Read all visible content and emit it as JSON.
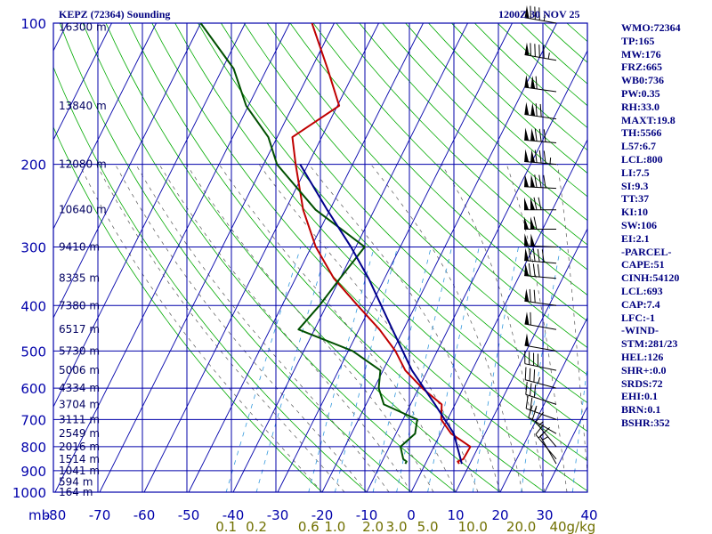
{
  "header": {
    "station": "KEPZ (72364) Sounding",
    "time": "1200Z 30 NOV 25"
  },
  "chart_data": {
    "type": "line",
    "title": "KEPZ (72364) Sounding",
    "y_axis": {
      "scale": "log",
      "pressure_ticks": [
        100,
        200,
        300,
        400,
        500,
        600,
        700,
        800,
        900,
        1000
      ],
      "pressure_unit_label": "mb",
      "pressure_range": [
        100,
        1000
      ]
    },
    "x_axis": {
      "temperature_ticks": [
        -80,
        -70,
        -60,
        -50,
        -40,
        -30,
        -20,
        -10,
        0,
        10,
        20,
        30,
        40
      ],
      "temperature_range": [
        -80,
        40
      ],
      "skew": "skew-T"
    },
    "mixing_ratio_labels": [
      "0.1",
      "0.2",
      "0.6",
      "1.0",
      "2.0",
      "3.0",
      "5.0",
      "10.0",
      "20.0",
      "40g/kg"
    ],
    "mixing_ratio_values": [
      0.1,
      0.2,
      0.6,
      1.0,
      2.0,
      3.0,
      5.0,
      10.0,
      20.0,
      40.0
    ],
    "height_labels": [
      {
        "p": 102,
        "label": "16300 m"
      },
      {
        "p": 150,
        "label": "13840 m"
      },
      {
        "p": 200,
        "label": "12080 m"
      },
      {
        "p": 250,
        "label": "10640 m"
      },
      {
        "p": 300,
        "label": "9410 m"
      },
      {
        "p": 350,
        "label": "8335 m"
      },
      {
        "p": 400,
        "label": "7380 m"
      },
      {
        "p": 450,
        "label": "6517 m"
      },
      {
        "p": 500,
        "label": "5730 m"
      },
      {
        "p": 550,
        "label": "5006 m"
      },
      {
        "p": 600,
        "label": "4334 m"
      },
      {
        "p": 650,
        "label": "3704 m"
      },
      {
        "p": 700,
        "label": "3111 m"
      },
      {
        "p": 750,
        "label": "2549 m"
      },
      {
        "p": 800,
        "label": "2016 m"
      },
      {
        "p": 850,
        "label": "1514 m"
      },
      {
        "p": 900,
        "label": "1041 m"
      },
      {
        "p": 950,
        "label": "594 m"
      },
      {
        "p": 1000,
        "label": "164 m"
      }
    ],
    "series": [
      {
        "key": "temperature",
        "color": "#c00000",
        "points": [
          [
            870,
            7.6
          ],
          [
            860,
            7.0
          ],
          [
            850,
            8.0
          ],
          [
            800,
            8.2
          ],
          [
            750,
            2.4
          ],
          [
            700,
            -1.4
          ],
          [
            650,
            -3.0
          ],
          [
            600,
            -9.2
          ],
          [
            550,
            -15.0
          ],
          [
            500,
            -19.4
          ],
          [
            450,
            -25.4
          ],
          [
            400,
            -33.0
          ],
          [
            350,
            -41.4
          ],
          [
            300,
            -49.0
          ],
          [
            250,
            -56.0
          ],
          [
            200,
            -62.8
          ],
          [
            175,
            -66.6
          ],
          [
            150,
            -59.6
          ],
          [
            125,
            -66.4
          ],
          [
            100,
            -75.0
          ]
        ]
      },
      {
        "key": "dewpoint",
        "color": "#005000",
        "points": [
          [
            870,
            -4.5
          ],
          [
            860,
            -4.5
          ],
          [
            850,
            -5.5
          ],
          [
            800,
            -7.5
          ],
          [
            750,
            -5.7
          ],
          [
            700,
            -6.8
          ],
          [
            650,
            -16.0
          ],
          [
            600,
            -19.0
          ],
          [
            550,
            -20.6
          ],
          [
            500,
            -29.0
          ],
          [
            450,
            -43.6
          ],
          [
            400,
            -41.6
          ],
          [
            350,
            -40.0
          ],
          [
            300,
            -38.0
          ],
          [
            250,
            -53.2
          ],
          [
            200,
            -67.0
          ],
          [
            175,
            -72.0
          ],
          [
            150,
            -80.5
          ],
          [
            125,
            -87.5
          ],
          [
            100,
            -100
          ]
        ]
      },
      {
        "key": "parcel",
        "color": "#00008b",
        "points": [
          [
            870,
            8.2
          ],
          [
            750,
            3.0
          ],
          [
            650,
            -4.5
          ],
          [
            550,
            -13.5
          ],
          [
            450,
            -22.5
          ],
          [
            350,
            -33.6
          ],
          [
            300,
            -41.1
          ],
          [
            250,
            -50.6
          ],
          [
            200,
            -61.8
          ]
        ]
      }
    ],
    "wind_barbs": [
      {
        "p": 100,
        "dir": 280,
        "spd": 85
      },
      {
        "p": 120,
        "dir": 280,
        "spd": 95
      },
      {
        "p": 140,
        "dir": 278,
        "spd": 110
      },
      {
        "p": 160,
        "dir": 278,
        "spd": 120
      },
      {
        "p": 180,
        "dir": 275,
        "spd": 130
      },
      {
        "p": 200,
        "dir": 275,
        "spd": 135
      },
      {
        "p": 225,
        "dir": 273,
        "spd": 130
      },
      {
        "p": 250,
        "dir": 270,
        "spd": 120
      },
      {
        "p": 275,
        "dir": 270,
        "spd": 110
      },
      {
        "p": 300,
        "dir": 272,
        "spd": 100
      },
      {
        "p": 325,
        "dir": 275,
        "spd": 90
      },
      {
        "p": 350,
        "dir": 275,
        "spd": 80
      },
      {
        "p": 400,
        "dir": 278,
        "spd": 70
      },
      {
        "p": 450,
        "dir": 280,
        "spd": 60
      },
      {
        "p": 500,
        "dir": 280,
        "spd": 50
      },
      {
        "p": 550,
        "dir": 282,
        "spd": 40
      },
      {
        "p": 600,
        "dir": 285,
        "spd": 35
      },
      {
        "p": 650,
        "dir": 288,
        "spd": 30
      },
      {
        "p": 700,
        "dir": 290,
        "spd": 25
      },
      {
        "p": 750,
        "dir": 300,
        "spd": 20
      },
      {
        "p": 800,
        "dir": 320,
        "spd": 15
      },
      {
        "p": 850,
        "dir": 320,
        "spd": 15
      },
      {
        "p": 870,
        "dir": 330,
        "spd": 15
      }
    ]
  },
  "indices": [
    "WMO:72364",
    "TP:165",
    "MW:176",
    "FRZ:665",
    "WB0:736",
    "PW:0.35",
    "RH:33.0",
    "MAXT:19.8",
    "TH:5566",
    "L57:6.7",
    "LCL:800",
    "LI:7.5",
    "SI:9.3",
    "TT:37",
    "KI:10",
    "SW:106",
    "EI:2.1",
    "-PARCEL-",
    "CAPE:51",
    "CINH:54120",
    "LCL:693",
    "CAP:7.4",
    "LFC:-1",
    "-WIND-",
    "STM:281/23",
    "HEL:126",
    "SHR+:0.0",
    "SRDS:72",
    "EHI:0.1",
    "BRN:0.1",
    "BSHR:352"
  ],
  "colors": {
    "frame": "#0000aa",
    "dry_adiabat": "#00aa00",
    "moist_adiabat": "#555555",
    "mixing_ratio": "#3399dd",
    "temperature": "#c00000",
    "dewpoint": "#005000",
    "parcel": "#00008b",
    "barb": "#000000"
  }
}
